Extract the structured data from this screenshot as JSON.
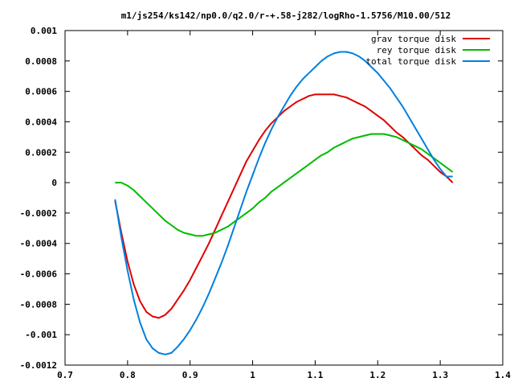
{
  "chart_data": {
    "type": "line",
    "title": "m1/js254/ks142/np0.0/q2.0/r-+.58-j282/logRho-1.5756/M10.00/512",
    "xlabel": "",
    "ylabel": "",
    "xlim": [
      0.7,
      1.4
    ],
    "ylim": [
      -0.0012,
      0.001
    ],
    "x_ticks": [
      0.7,
      0.8,
      0.9,
      1.0,
      1.1,
      1.2,
      1.3,
      1.4
    ],
    "x_tick_labels": [
      "0.7",
      "0.8",
      "0.9",
      "1",
      "1.1",
      "1.2",
      "1.3",
      "1.4"
    ],
    "y_ticks": [
      -0.0012,
      -0.001,
      -0.0008,
      -0.0006,
      -0.0004,
      -0.0002,
      0,
      0.0002,
      0.0004,
      0.0006,
      0.0008,
      0.001
    ],
    "y_tick_labels": [
      "-0.0012",
      "-0.001",
      "-0.0008",
      "-0.0006",
      "-0.0004",
      "-0.0002",
      "0",
      "0.0002",
      "0.0004",
      "0.0006",
      "0.0008",
      "0.001"
    ],
    "grid": false,
    "legend_position": "top-right",
    "series": [
      {
        "name": "grav torque disk",
        "color": "#e00000",
        "x": [
          0.78,
          0.79,
          0.8,
          0.81,
          0.82,
          0.83,
          0.84,
          0.85,
          0.86,
          0.87,
          0.88,
          0.89,
          0.9,
          0.91,
          0.92,
          0.93,
          0.94,
          0.95,
          0.96,
          0.97,
          0.98,
          0.99,
          1.0,
          1.01,
          1.02,
          1.03,
          1.04,
          1.05,
          1.06,
          1.07,
          1.08,
          1.09,
          1.1,
          1.11,
          1.12,
          1.13,
          1.14,
          1.15,
          1.16,
          1.17,
          1.18,
          1.19,
          1.2,
          1.21,
          1.22,
          1.23,
          1.24,
          1.25,
          1.26,
          1.27,
          1.28,
          1.29,
          1.3,
          1.31,
          1.32
        ],
        "y": [
          -0.00012,
          -0.00033,
          -0.00052,
          -0.00067,
          -0.00078,
          -0.00085,
          -0.00088,
          -0.00089,
          -0.00087,
          -0.00083,
          -0.00077,
          -0.00071,
          -0.00064,
          -0.00056,
          -0.00048,
          -0.0004,
          -0.00031,
          -0.00022,
          -0.00013,
          -4e-05,
          5e-05,
          0.00014,
          0.00021,
          0.00028,
          0.00034,
          0.00039,
          0.00043,
          0.00047,
          0.0005,
          0.00053,
          0.00055,
          0.00057,
          0.00058,
          0.00058,
          0.00058,
          0.00058,
          0.00057,
          0.00056,
          0.00054,
          0.00052,
          0.0005,
          0.00047,
          0.00044,
          0.00041,
          0.00037,
          0.00033,
          0.0003,
          0.00026,
          0.00022,
          0.00018,
          0.00015,
          0.00011,
          7e-05,
          4e-05,
          0.0
        ]
      },
      {
        "name": "rey torque disk",
        "color": "#00bb00",
        "x": [
          0.78,
          0.79,
          0.8,
          0.81,
          0.82,
          0.83,
          0.84,
          0.85,
          0.86,
          0.87,
          0.88,
          0.89,
          0.9,
          0.91,
          0.92,
          0.93,
          0.94,
          0.95,
          0.96,
          0.97,
          0.98,
          0.99,
          1.0,
          1.01,
          1.02,
          1.03,
          1.04,
          1.05,
          1.06,
          1.07,
          1.08,
          1.09,
          1.1,
          1.11,
          1.12,
          1.13,
          1.14,
          1.15,
          1.16,
          1.17,
          1.18,
          1.19,
          1.2,
          1.21,
          1.22,
          1.23,
          1.24,
          1.25,
          1.26,
          1.27,
          1.28,
          1.29,
          1.3,
          1.31,
          1.32
        ],
        "y": [
          0.0,
          0.0,
          -2e-05,
          -5e-05,
          -9e-05,
          -0.00013,
          -0.00017,
          -0.00021,
          -0.00025,
          -0.00028,
          -0.00031,
          -0.00033,
          -0.00034,
          -0.00035,
          -0.00035,
          -0.00034,
          -0.00033,
          -0.00031,
          -0.00029,
          -0.00026,
          -0.00023,
          -0.0002,
          -0.00017,
          -0.00013,
          -0.0001,
          -6e-05,
          -3e-05,
          0.0,
          3e-05,
          6e-05,
          9e-05,
          0.00012,
          0.00015,
          0.00018,
          0.0002,
          0.00023,
          0.00025,
          0.00027,
          0.00029,
          0.0003,
          0.00031,
          0.00032,
          0.00032,
          0.00032,
          0.00031,
          0.0003,
          0.00028,
          0.00026,
          0.00024,
          0.00022,
          0.00019,
          0.00016,
          0.00013,
          0.0001,
          7e-05
        ]
      },
      {
        "name": "total torque disk",
        "color": "#0080e0",
        "x": [
          0.78,
          0.79,
          0.8,
          0.81,
          0.82,
          0.83,
          0.84,
          0.85,
          0.86,
          0.87,
          0.88,
          0.89,
          0.9,
          0.91,
          0.92,
          0.93,
          0.94,
          0.95,
          0.96,
          0.97,
          0.98,
          0.99,
          1.0,
          1.01,
          1.02,
          1.03,
          1.04,
          1.05,
          1.06,
          1.07,
          1.08,
          1.09,
          1.1,
          1.11,
          1.12,
          1.13,
          1.14,
          1.15,
          1.16,
          1.17,
          1.18,
          1.19,
          1.2,
          1.21,
          1.22,
          1.23,
          1.24,
          1.25,
          1.26,
          1.27,
          1.28,
          1.29,
          1.3,
          1.31,
          1.32
        ],
        "y": [
          -0.00011,
          -0.00036,
          -0.00058,
          -0.00077,
          -0.00092,
          -0.00103,
          -0.00109,
          -0.00112,
          -0.00113,
          -0.00112,
          -0.00108,
          -0.00103,
          -0.00097,
          -0.0009,
          -0.00082,
          -0.00073,
          -0.00063,
          -0.00053,
          -0.00042,
          -0.0003,
          -0.00018,
          -6e-05,
          5e-05,
          0.00016,
          0.00026,
          0.00035,
          0.00043,
          0.0005,
          0.00057,
          0.00063,
          0.00068,
          0.00072,
          0.00076,
          0.0008,
          0.00083,
          0.00085,
          0.00086,
          0.00086,
          0.00085,
          0.00083,
          0.0008,
          0.00076,
          0.00072,
          0.00067,
          0.00062,
          0.00056,
          0.0005,
          0.00043,
          0.00036,
          0.00029,
          0.00022,
          0.00015,
          9e-05,
          4e-05,
          4e-05
        ]
      }
    ]
  }
}
